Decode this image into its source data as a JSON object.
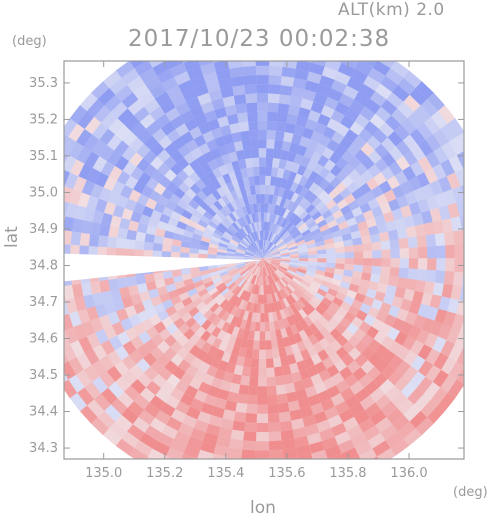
{
  "header": {
    "altitude_label": "ALT(km) 2.0",
    "timestamp": "2017/10/23 00:02:38"
  },
  "axes": {
    "x_label": "lon",
    "y_label": "lat",
    "x_unit": "(deg)",
    "y_unit": "(deg)"
  },
  "chart_data": {
    "type": "heatmap",
    "title": "2017/10/23 00:02:38",
    "subtitle": "ALT(km) 2.0",
    "xlabel": "lon",
    "ylabel": "lat",
    "x_unit": "(deg)",
    "y_unit": "(deg)",
    "xlim": [
      134.87,
      136.18
    ],
    "ylim": [
      34.27,
      35.36
    ],
    "x_ticks": [
      135.0,
      135.2,
      135.4,
      135.6,
      135.8,
      136.0
    ],
    "x_tick_labels": [
      "135.0",
      "135.2",
      "135.4",
      "135.6",
      "135.8",
      "136.0"
    ],
    "y_ticks": [
      34.3,
      34.4,
      34.5,
      34.6,
      34.7,
      34.8,
      34.9,
      35.0,
      35.1,
      35.2,
      35.3
    ],
    "y_tick_labels": [
      "34.3",
      "34.4",
      "34.5",
      "34.6",
      "34.7",
      "34.8",
      "34.9",
      "35.0",
      "35.1",
      "35.2",
      "35.3"
    ],
    "grid": false,
    "colors": {
      "positive": "#f07070",
      "negative": "#6e7ff0",
      "neutral": "#f2f2f6",
      "axis": "#9a9a9a"
    },
    "radar_center": [
      135.52,
      34.82
    ],
    "radar_range_deg_lon": 0.78
  }
}
